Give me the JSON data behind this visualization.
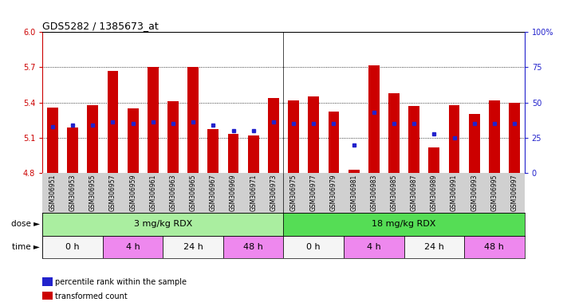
{
  "title": "GDS5282 / 1385673_at",
  "samples": [
    "GSM306951",
    "GSM306953",
    "GSM306955",
    "GSM306957",
    "GSM306959",
    "GSM306961",
    "GSM306963",
    "GSM306965",
    "GSM306967",
    "GSM306969",
    "GSM306971",
    "GSM306973",
    "GSM306975",
    "GSM306977",
    "GSM306979",
    "GSM306981",
    "GSM306983",
    "GSM306985",
    "GSM306987",
    "GSM306989",
    "GSM306991",
    "GSM306993",
    "GSM306995",
    "GSM306997"
  ],
  "bar_values": [
    5.36,
    5.19,
    5.38,
    5.67,
    5.35,
    5.7,
    5.41,
    5.7,
    5.17,
    5.13,
    5.12,
    5.44,
    5.42,
    5.45,
    5.32,
    4.83,
    5.72,
    5.48,
    5.37,
    5.02,
    5.38,
    5.3,
    5.42,
    5.4
  ],
  "percentile_values": [
    33,
    34,
    34,
    36,
    35,
    36,
    35,
    36,
    34,
    30,
    30,
    36,
    35,
    35,
    35,
    20,
    43,
    35,
    35,
    28,
    25,
    35,
    35,
    35
  ],
  "bar_base": 4.8,
  "ylim_left": [
    4.8,
    6.0
  ],
  "ylim_right": [
    0,
    100
  ],
  "yticks_left": [
    4.8,
    5.1,
    5.4,
    5.7,
    6.0
  ],
  "yticks_right": [
    0,
    25,
    50,
    75,
    100
  ],
  "bar_color": "#cc0000",
  "dot_color": "#2222cc",
  "left_axis_color": "#cc0000",
  "right_axis_color": "#2222cc",
  "bar_width": 0.55,
  "dose_groups": [
    {
      "label": "3 mg/kg RDX",
      "start": 0,
      "end": 12,
      "color": "#aaeea0"
    },
    {
      "label": "18 mg/kg RDX",
      "start": 12,
      "end": 24,
      "color": "#55dd55"
    }
  ],
  "time_groups": [
    {
      "label": "0 h",
      "start": 0,
      "end": 3,
      "color": "#f5f5f5"
    },
    {
      "label": "4 h",
      "start": 3,
      "end": 6,
      "color": "#ee88ee"
    },
    {
      "label": "24 h",
      "start": 6,
      "end": 9,
      "color": "#f5f5f5"
    },
    {
      "label": "48 h",
      "start": 9,
      "end": 12,
      "color": "#ee88ee"
    },
    {
      "label": "0 h",
      "start": 12,
      "end": 15,
      "color": "#f5f5f5"
    },
    {
      "label": "4 h",
      "start": 15,
      "end": 18,
      "color": "#ee88ee"
    },
    {
      "label": "24 h",
      "start": 18,
      "end": 21,
      "color": "#f5f5f5"
    },
    {
      "label": "48 h",
      "start": 21,
      "end": 24,
      "color": "#ee88ee"
    }
  ],
  "legend_items": [
    {
      "color": "#cc0000",
      "label": "transformed count"
    },
    {
      "color": "#2222cc",
      "label": "percentile rank within the sample"
    }
  ]
}
